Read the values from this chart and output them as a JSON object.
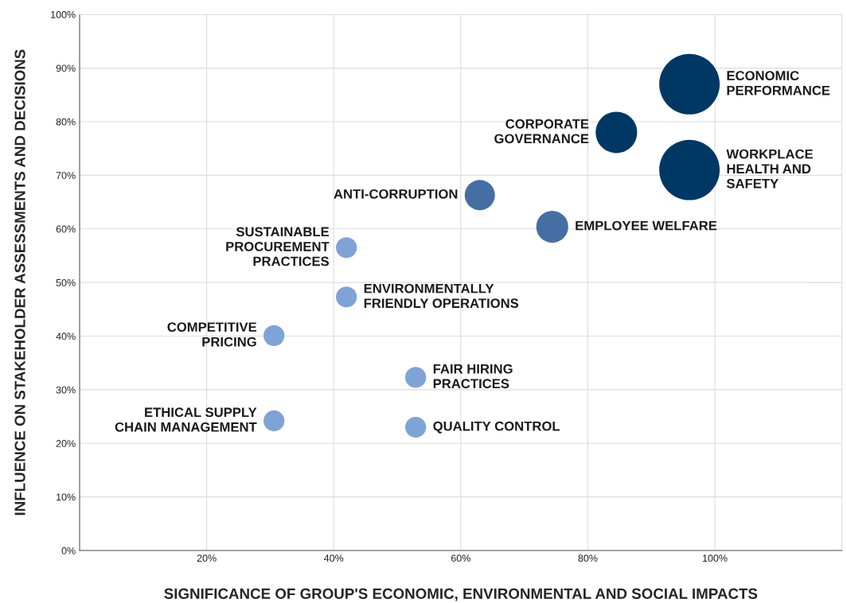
{
  "chart_data": {
    "type": "bubble",
    "xlabel": "SIGNIFICANCE OF GROUP'S ECONOMIC, ENVIRONMENTAL AND SOCIAL IMPACTS",
    "ylabel": "INFLUENCE ON STAKEHOLDER ASSESSMENTS AND DECISIONS",
    "xlim": [
      0,
      120
    ],
    "xticks": [
      {
        "value": 20,
        "label": "20%"
      },
      {
        "value": 40,
        "label": "40%"
      },
      {
        "value": 60,
        "label": "60%"
      },
      {
        "value": 80,
        "label": "80%"
      },
      {
        "value": 100,
        "label": "100%"
      }
    ],
    "ylim": [
      0,
      100
    ],
    "yticks": [
      {
        "value": 0,
        "label": "0%"
      },
      {
        "value": 10,
        "label": "10%"
      },
      {
        "value": 20,
        "label": "20%"
      },
      {
        "value": 30,
        "label": "30%"
      },
      {
        "value": 40,
        "label": "40%"
      },
      {
        "value": 50,
        "label": "50%"
      },
      {
        "value": 60,
        "label": "60%"
      },
      {
        "value": 70,
        "label": "70%"
      },
      {
        "value": 80,
        "label": "80%"
      },
      {
        "value": 90,
        "label": "90%"
      },
      {
        "value": 100,
        "label": "100%"
      }
    ],
    "grid": true,
    "marker": "circle",
    "series": [
      {
        "name": "ECONOMIC\nPERFORMANCE",
        "color": "#003865",
        "x": [
          96
        ],
        "values": [
          87
        ],
        "sizes": [
          1
        ]
      },
      {
        "name": "CORPORATE\nGOVERNANCE",
        "color": "#003865",
        "x": [
          84.5
        ],
        "values": [
          78
        ],
        "sizes": [
          0.47
        ]
      },
      {
        "name": "WORKPLACE\nHEALTH AND\nSAFETY",
        "color": "#003865",
        "x": [
          96
        ],
        "values": [
          71
        ],
        "sizes": [
          1
        ]
      },
      {
        "name": "ANTI-CORRUPTION",
        "color": "#456fa3",
        "x": [
          63
        ],
        "values": [
          66.3
        ],
        "sizes": [
          0.25
        ]
      },
      {
        "name": "EMPLOYEE WELFARE",
        "color": "#456fa3",
        "x": [
          74.4
        ],
        "values": [
          60.4
        ],
        "sizes": [
          0.28
        ]
      },
      {
        "name": "SUSTAINABLE\nPROCUREMENT\nPRACTICES",
        "color": "#7fa3d6",
        "x": [
          42
        ],
        "values": [
          56.5
        ],
        "sizes": [
          0.12
        ]
      },
      {
        "name": "ENVIRONMENTALLY\nFRIENDLY OPERATIONS",
        "color": "#7fa3d6",
        "x": [
          42
        ],
        "values": [
          47.3
        ],
        "sizes": [
          0.12
        ]
      },
      {
        "name": "COMPETITIVE\nPRICING",
        "color": "#7fa3d6",
        "x": [
          30.6
        ],
        "values": [
          40.1
        ],
        "sizes": [
          0.12
        ]
      },
      {
        "name": "FAIR HIRING\nPRACTICES",
        "color": "#7fa3d6",
        "x": [
          52.9
        ],
        "values": [
          32.3
        ],
        "sizes": [
          0.12
        ]
      },
      {
        "name": "ETHICAL SUPPLY\nCHAIN MANAGEMENT",
        "color": "#7fa3d6",
        "x": [
          30.6
        ],
        "values": [
          24.2
        ],
        "sizes": [
          0.12
        ]
      },
      {
        "name": "QUALITY CONTROL",
        "color": "#7fa3d6",
        "x": [
          52.9
        ],
        "values": [
          23
        ],
        "sizes": [
          0.12
        ]
      }
    ]
  }
}
